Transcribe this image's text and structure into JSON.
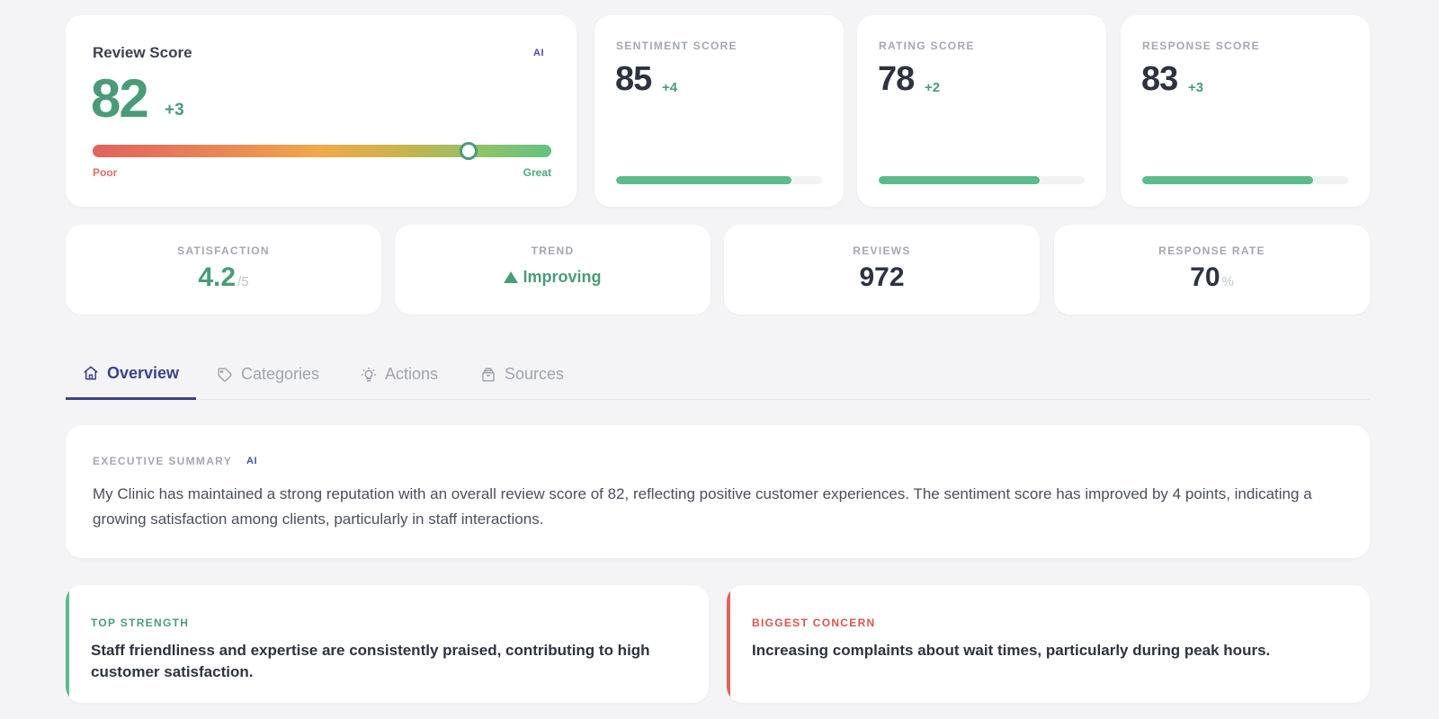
{
  "review": {
    "title": "Review Score",
    "ai_badge": "AI",
    "score": "82",
    "delta": "+3",
    "gauge_level": 0.82,
    "low_label": "Poor",
    "high_label": "Great"
  },
  "sub_scores": [
    {
      "label": "SENTIMENT SCORE",
      "value": "85",
      "delta": "+4",
      "level": 0.85
    },
    {
      "label": "RATING SCORE",
      "value": "78",
      "delta": "+2",
      "level": 0.78
    },
    {
      "label": "RESPONSE SCORE",
      "value": "83",
      "delta": "+3",
      "level": 0.83
    }
  ],
  "stats": {
    "satisfaction": {
      "label": "SATISFACTION",
      "value": "4.2",
      "unit": "/5"
    },
    "trend": {
      "label": "TREND",
      "value": "Improving"
    },
    "reviews": {
      "label": "REVIEWS",
      "value": "972"
    },
    "response_rate": {
      "label": "RESPONSE RATE",
      "value": "70",
      "unit": "%"
    }
  },
  "tabs": [
    {
      "label": "Overview",
      "icon": "home-icon",
      "active": true
    },
    {
      "label": "Categories",
      "icon": "tag-icon",
      "active": false
    },
    {
      "label": "Actions",
      "icon": "lightbulb-icon",
      "active": false
    },
    {
      "label": "Sources",
      "icon": "archive-icon",
      "active": false
    }
  ],
  "summary": {
    "label": "EXECUTIVE SUMMARY",
    "ai_badge": "AI",
    "text": "My Clinic has maintained a strong reputation with an overall review score of 82, reflecting positive customer experiences. The sentiment score has improved by 4 points, indicating a growing satisfaction among clients, particularly in staff interactions."
  },
  "strength": {
    "label": "TOP STRENGTH",
    "text": "Staff friendliness and expertise are consistently praised, contributing to high customer satisfaction.",
    "color": "#4a9c78"
  },
  "concern": {
    "label": "BIGGEST CONCERN",
    "text": "Increasing complaints about wait times, particularly during peak hours.",
    "color": "#d9534f"
  },
  "colors": {
    "accent": "#3c4288",
    "positive": "#4a9c78",
    "bar": "#5cbb8a",
    "negative": "#e0625a"
  }
}
